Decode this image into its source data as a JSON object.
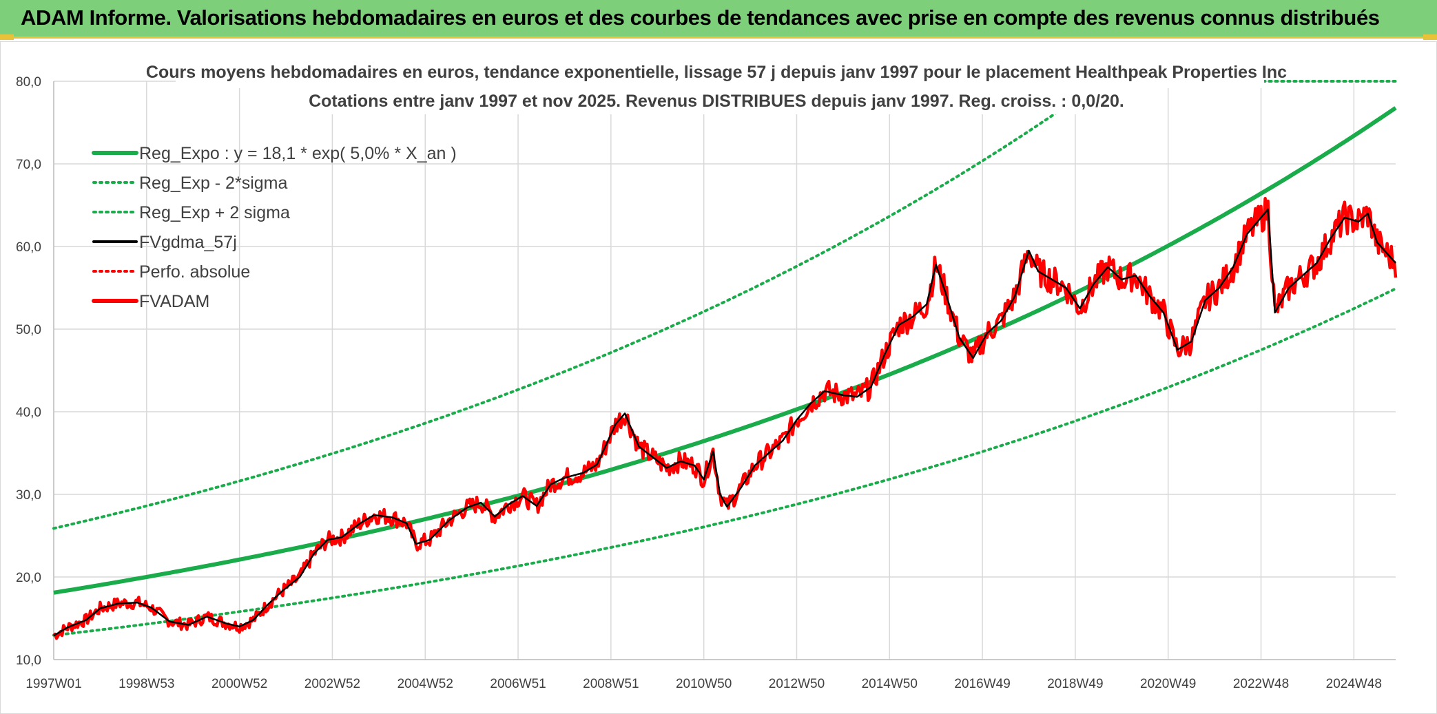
{
  "header": {
    "title": "ADAM Informe. Valorisations hebdomadaires en euros et des courbes de tendances avec prise en compte des revenus connus distribués"
  },
  "colors": {
    "banner": "#7ecf7a",
    "accent": "#e8c33a",
    "trend": "#1aab4b",
    "smooth": "#000000",
    "price": "#ff0000",
    "grid": "#d9d9d9"
  },
  "chart_data": {
    "type": "line",
    "title": "Cours moyens hebdomadaires en euros, tendance exponentielle, lissage 57 j depuis janv 1997 pour le placement Healthpeak Properties Inc",
    "subtitle": "Cotations entre janv 1997 et nov 2025. Revenus DISTRIBUES depuis janv 1997. Reg. croiss. : 0,0/20.",
    "xlabel": "",
    "ylabel": "",
    "ylim": [
      10,
      80
    ],
    "xlim": [
      1997.0,
      2025.9
    ],
    "grid": true,
    "legend_position": "top-left",
    "y_ticks": [
      "10,0",
      "20,0",
      "30,0",
      "40,0",
      "50,0",
      "60,0",
      "70,0",
      "80,0"
    ],
    "x_ticks": [
      {
        "label": "1997W01",
        "x": 1997.0
      },
      {
        "label": "1998W53",
        "x": 1999.0
      },
      {
        "label": "2000W52",
        "x": 2001.0
      },
      {
        "label": "2002W52",
        "x": 2003.0
      },
      {
        "label": "2004W52",
        "x": 2005.0
      },
      {
        "label": "2006W51",
        "x": 2007.0
      },
      {
        "label": "2008W51",
        "x": 2009.0
      },
      {
        "label": "2010W50",
        "x": 2011.0
      },
      {
        "label": "2012W50",
        "x": 2013.0
      },
      {
        "label": "2014W50",
        "x": 2015.0
      },
      {
        "label": "2016W49",
        "x": 2017.0
      },
      {
        "label": "2018W49",
        "x": 2019.0
      },
      {
        "label": "2020W49",
        "x": 2021.0
      },
      {
        "label": "2022W48",
        "x": 2023.0
      },
      {
        "label": "2024W48",
        "x": 2025.0
      }
    ],
    "regression": {
      "a": 18.1,
      "rate": 0.05,
      "x0": 1997.0,
      "sigma_minus_factor": 0.715,
      "sigma_plus_factor": 1.43
    },
    "series": [
      {
        "name": "Reg_Expo : y = 18,1 * exp( 5,0% *  X_an )",
        "style": "solid-thick",
        "color": "#1aab4b"
      },
      {
        "name": "Reg_Exp - 2*sigma",
        "style": "dotted",
        "color": "#1aab4b"
      },
      {
        "name": "Reg_Exp + 2 sigma",
        "style": "dotted",
        "color": "#1aab4b"
      },
      {
        "name": "FVgdma_57j",
        "style": "solid",
        "color": "#000000"
      },
      {
        "name": "Perfo. absolue",
        "style": "dotted",
        "color": "#ff0000"
      },
      {
        "name": "FVADAM",
        "style": "solid-thick",
        "color": "#ff0000"
      }
    ],
    "price_points": [
      [
        1997.0,
        12.9
      ],
      [
        1997.3,
        13.9
      ],
      [
        1997.7,
        14.8
      ],
      [
        1998.0,
        16.2
      ],
      [
        1998.4,
        16.8
      ],
      [
        1998.8,
        16.9
      ],
      [
        1999.1,
        16.3
      ],
      [
        1999.5,
        14.6
      ],
      [
        1999.9,
        14.2
      ],
      [
        2000.3,
        15.2
      ],
      [
        2000.7,
        14.4
      ],
      [
        2001.0,
        14.0
      ],
      [
        2001.3,
        14.8
      ],
      [
        2001.6,
        16.6
      ],
      [
        2001.9,
        18.2
      ],
      [
        2002.3,
        20.0
      ],
      [
        2002.6,
        22.8
      ],
      [
        2002.9,
        24.5
      ],
      [
        2003.2,
        24.8
      ],
      [
        2003.6,
        26.5
      ],
      [
        2003.9,
        27.5
      ],
      [
        2004.3,
        27.2
      ],
      [
        2004.6,
        26.5
      ],
      [
        2004.8,
        24.0
      ],
      [
        2005.1,
        24.5
      ],
      [
        2005.5,
        26.8
      ],
      [
        2005.9,
        28.4
      ],
      [
        2006.2,
        29.0
      ],
      [
        2006.5,
        27.3
      ],
      [
        2006.8,
        28.8
      ],
      [
        2007.1,
        29.8
      ],
      [
        2007.4,
        28.6
      ],
      [
        2007.7,
        31.2
      ],
      [
        2008.0,
        32.0
      ],
      [
        2008.4,
        32.6
      ],
      [
        2008.7,
        33.6
      ],
      [
        2009.1,
        38.5
      ],
      [
        2009.3,
        39.8
      ],
      [
        2009.6,
        35.8
      ],
      [
        2009.9,
        34.5
      ],
      [
        2010.2,
        33.2
      ],
      [
        2010.5,
        34.0
      ],
      [
        2010.8,
        33.5
      ],
      [
        2011.0,
        31.8
      ],
      [
        2011.2,
        35.2
      ],
      [
        2011.35,
        30.0
      ],
      [
        2011.5,
        28.5
      ],
      [
        2011.8,
        30.8
      ],
      [
        2012.1,
        33.5
      ],
      [
        2012.4,
        35.0
      ],
      [
        2012.7,
        36.5
      ],
      [
        2013.0,
        39.0
      ],
      [
        2013.3,
        41.0
      ],
      [
        2013.6,
        42.5
      ],
      [
        2014.0,
        42.0
      ],
      [
        2014.3,
        41.8
      ],
      [
        2014.6,
        43.0
      ],
      [
        2014.9,
        47.0
      ],
      [
        2015.2,
        50.5
      ],
      [
        2015.5,
        51.5
      ],
      [
        2015.8,
        53.0
      ],
      [
        2016.0,
        57.8
      ],
      [
        2016.2,
        54.5
      ],
      [
        2016.5,
        49.0
      ],
      [
        2016.8,
        46.5
      ],
      [
        2017.1,
        49.5
      ],
      [
        2017.4,
        51.0
      ],
      [
        2017.7,
        54.0
      ],
      [
        2018.0,
        59.5
      ],
      [
        2018.2,
        57.0
      ],
      [
        2018.5,
        56.0
      ],
      [
        2018.8,
        55.0
      ],
      [
        2019.1,
        52.5
      ],
      [
        2019.4,
        55.5
      ],
      [
        2019.7,
        57.5
      ],
      [
        2020.0,
        56.0
      ],
      [
        2020.3,
        56.5
      ],
      [
        2020.6,
        54.0
      ],
      [
        2020.9,
        52.0
      ],
      [
        2021.2,
        47.5
      ],
      [
        2021.5,
        48.5
      ],
      [
        2021.8,
        53.5
      ],
      [
        2022.1,
        55.0
      ],
      [
        2022.4,
        57.5
      ],
      [
        2022.7,
        61.5
      ],
      [
        2023.0,
        63.5
      ],
      [
        2023.15,
        64.5
      ],
      [
        2023.3,
        52.0
      ],
      [
        2023.6,
        55.0
      ],
      [
        2023.9,
        56.5
      ],
      [
        2024.2,
        58.0
      ],
      [
        2024.5,
        61.0
      ],
      [
        2024.8,
        63.5
      ],
      [
        2025.1,
        63.0
      ],
      [
        2025.3,
        64.0
      ],
      [
        2025.5,
        60.5
      ],
      [
        2025.9,
        58.0
      ]
    ]
  }
}
